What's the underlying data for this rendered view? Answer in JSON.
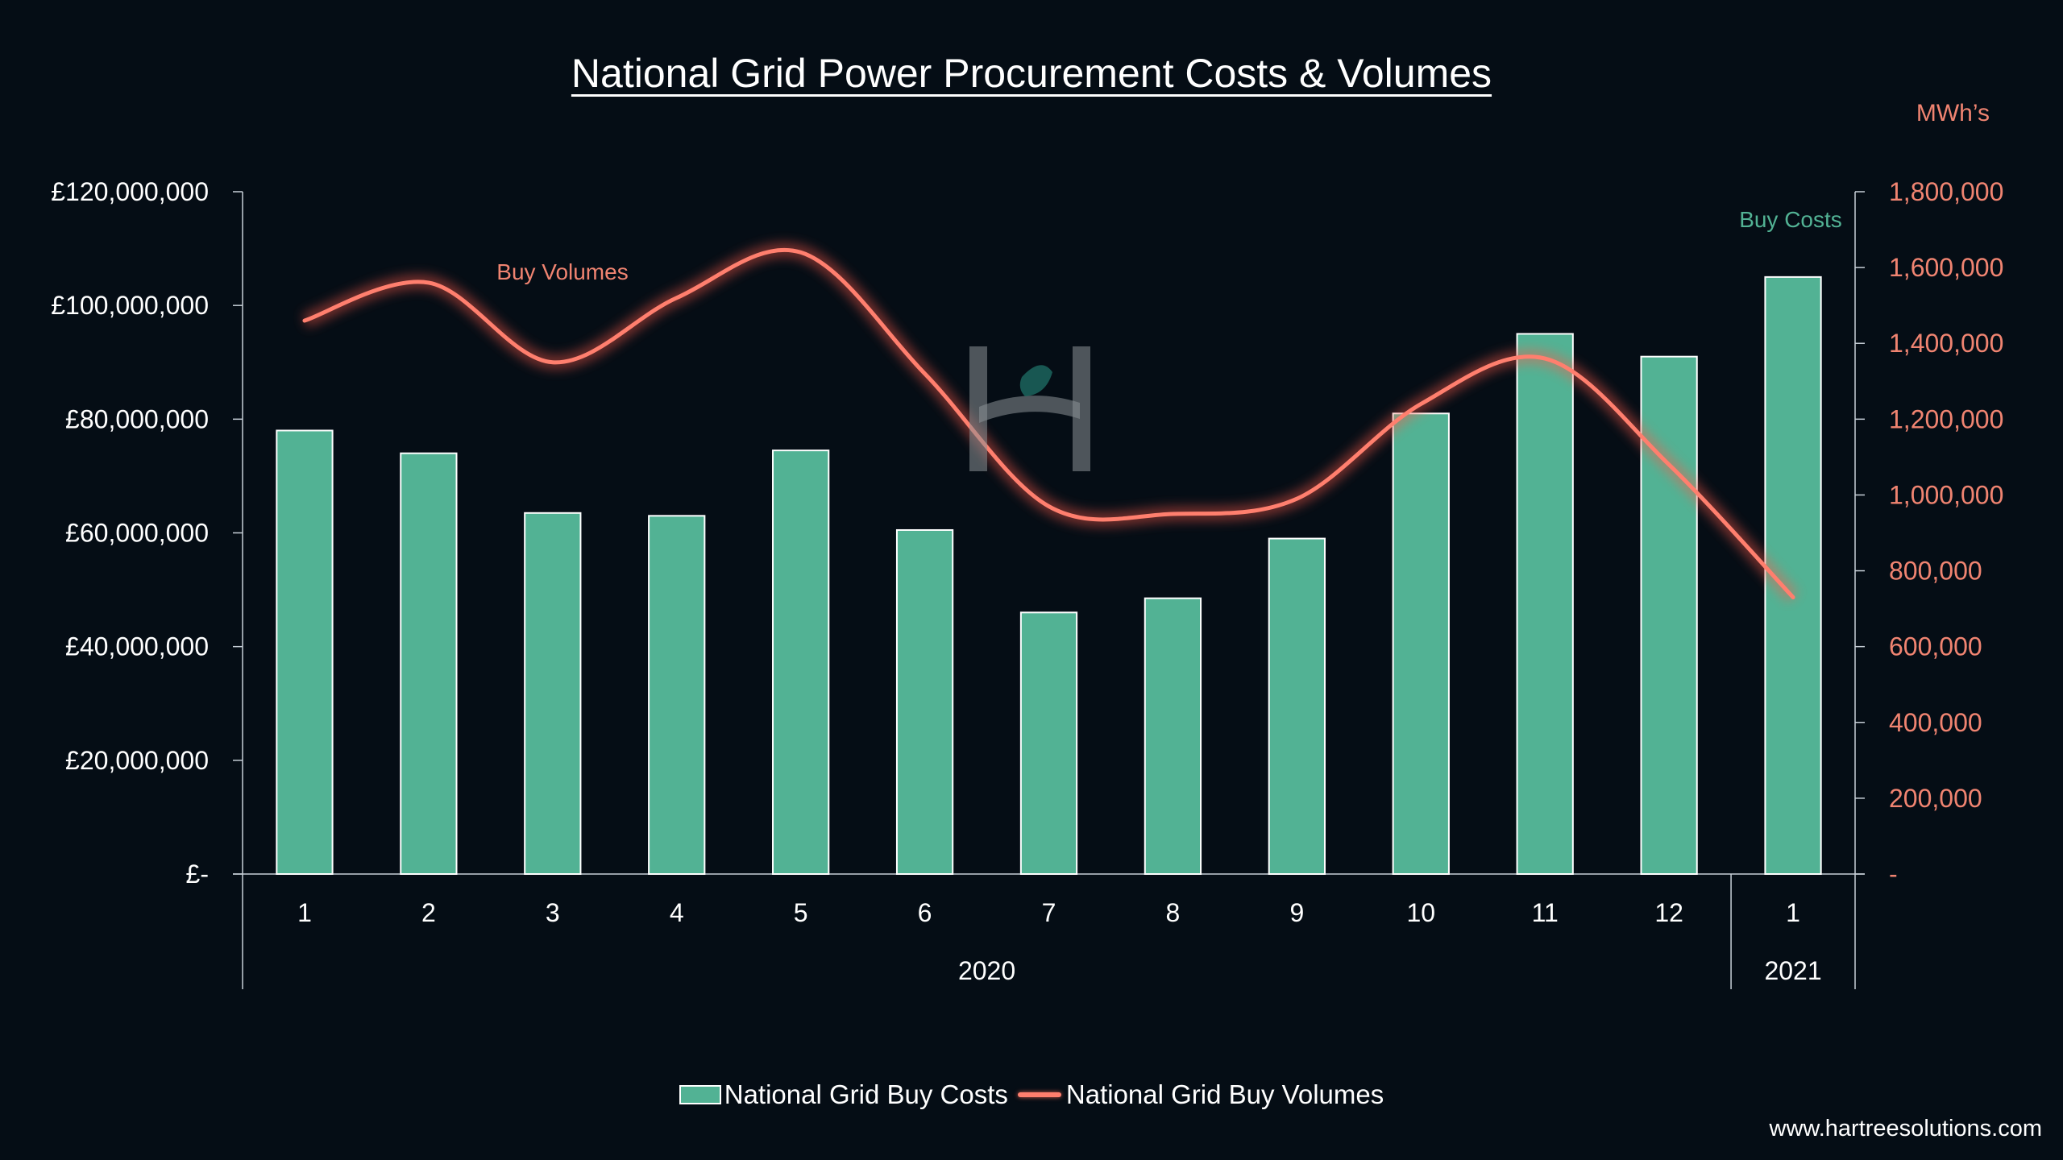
{
  "title": "National Grid Power Procurement Costs & Volumes",
  "website": "www.hartreesolutions.com",
  "colors": {
    "background": "#050d15",
    "bars": "#52b294",
    "line": "#ff7f6e",
    "right_axis_text": "#f08471",
    "text": "#ffffff"
  },
  "legend": {
    "costs": "National Grid Buy Costs",
    "volumes": "National Grid Buy Volumes"
  },
  "chart_data": {
    "type": "bar",
    "grid": false,
    "legend_position": "bottom",
    "categories": [
      "1",
      "2",
      "3",
      "4",
      "5",
      "6",
      "7",
      "8",
      "9",
      "10",
      "11",
      "12",
      "1"
    ],
    "groups": [
      {
        "label": "2020",
        "span": 12
      },
      {
        "label": "2021",
        "span": 1
      }
    ],
    "y_left": {
      "ylim": [
        0,
        120000000
      ],
      "ticks": [
        0,
        20000000,
        40000000,
        60000000,
        80000000,
        100000000,
        120000000
      ],
      "tick_labels": [
        "£-",
        "£20,000,000",
        "£40,000,000",
        "£60,000,000",
        "£80,000,000",
        "£100,000,000",
        "£120,000,000"
      ]
    },
    "y_right": {
      "label": "MWh’s",
      "ylim": [
        0,
        1800000
      ],
      "ticks": [
        0,
        200000,
        400000,
        600000,
        800000,
        1000000,
        1200000,
        1400000,
        1600000,
        1800000
      ],
      "tick_labels": [
        "-",
        "200,000",
        "400,000",
        "600,000",
        "800,000",
        "1,000,000",
        "1,200,000",
        "1,400,000",
        "1,600,000",
        "1,800,000"
      ]
    },
    "series": [
      {
        "name": "National Grid Buy Costs",
        "type": "bar",
        "axis": "left",
        "annotation": "Buy Costs",
        "values": [
          78000000,
          74000000,
          63500000,
          63000000,
          74500000,
          60500000,
          46000000,
          48500000,
          59000000,
          81000000,
          95000000,
          91000000,
          105000000
        ]
      },
      {
        "name": "National Grid Buy Volumes",
        "type": "line",
        "smooth": true,
        "axis": "right",
        "annotation": "Buy Volumes",
        "values": [
          1460000,
          1560000,
          1350000,
          1520000,
          1640000,
          1320000,
          970000,
          950000,
          990000,
          1240000,
          1360000,
          1080000,
          730000
        ]
      }
    ]
  }
}
